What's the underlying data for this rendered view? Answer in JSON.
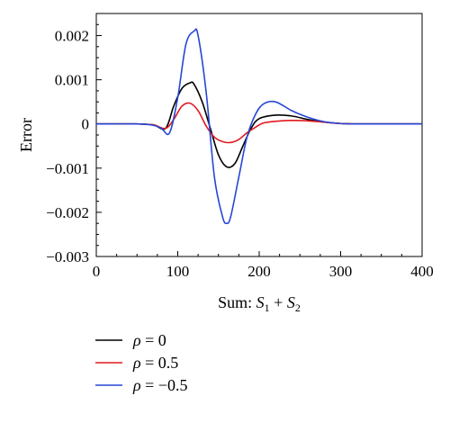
{
  "chart_data": {
    "type": "line",
    "title": "",
    "xlabel": "Sum: S1 + S2",
    "xlabel_parts": {
      "prefix": "Sum: ",
      "var1": "S",
      "sub1": "1",
      "op": " + ",
      "var2": "S",
      "sub2": "2"
    },
    "ylabel": "Error",
    "xlim": [
      0,
      400
    ],
    "ylim": [
      -0.003,
      0.0025
    ],
    "xticks": [
      0,
      100,
      200,
      300,
      400
    ],
    "xtick_labels": [
      "0",
      "100",
      "200",
      "300",
      "400"
    ],
    "yticks": [
      0.002,
      0.001,
      0,
      -0.001,
      -0.002,
      -0.003
    ],
    "ytick_labels": [
      "0.002",
      "0.001",
      "0",
      "−0.001",
      "−0.002",
      "−0.003"
    ],
    "grid": false,
    "legend_position": "bottom-left",
    "series": [
      {
        "name": "ρ = 0",
        "color": "#000000",
        "x": [
          0,
          50,
          70,
          85,
          95,
          105,
          115,
          120,
          130,
          140,
          150,
          160,
          170,
          180,
          190,
          200,
          220,
          240,
          260,
          280,
          300,
          320,
          350,
          400
        ],
        "y": [
          0,
          0,
          -2e-05,
          -0.0001,
          0.0004,
          0.0008,
          0.00093,
          0.0009,
          0.0005,
          -0.0001,
          -0.0007,
          -0.00097,
          -0.0009,
          -0.0005,
          -0.0001,
          0.00012,
          0.0002,
          0.00018,
          0.0001,
          4e-05,
          1e-05,
          0,
          0,
          0
        ]
      },
      {
        "name": "ρ = 0.5",
        "color": "#e0191f",
        "x": [
          0,
          50,
          70,
          85,
          95,
          105,
          115,
          125,
          135,
          145,
          155,
          165,
          175,
          185,
          195,
          205,
          220,
          240,
          260,
          280,
          300,
          320,
          350,
          400
        ],
        "y": [
          0,
          0,
          -2e-05,
          -0.0001,
          0.0001,
          0.0004,
          0.00047,
          0.0003,
          -5e-05,
          -0.0003,
          -0.0004,
          -0.00042,
          -0.00035,
          -0.0002,
          -8e-05,
          2e-05,
          6e-05,
          8e-05,
          7e-05,
          4e-05,
          1e-05,
          0,
          0,
          0
        ]
      },
      {
        "name": "ρ = −0.5",
        "color": "#2746d6",
        "x": [
          0,
          50,
          70,
          80,
          90,
          100,
          110,
          120,
          125,
          135,
          145,
          155,
          160,
          165,
          175,
          185,
          195,
          205,
          220,
          240,
          260,
          280,
          300,
          320,
          350,
          400
        ],
        "y": [
          0,
          0,
          -3e-05,
          -0.0001,
          -0.0002,
          0.0006,
          0.0018,
          0.0021,
          0.002,
          0.0007,
          -0.0012,
          -0.0021,
          -0.00225,
          -0.0021,
          -0.0012,
          -0.0003,
          0.0002,
          0.00045,
          0.0005,
          0.0003,
          0.00015,
          5e-05,
          1e-05,
          0,
          0,
          0
        ]
      }
    ]
  }
}
